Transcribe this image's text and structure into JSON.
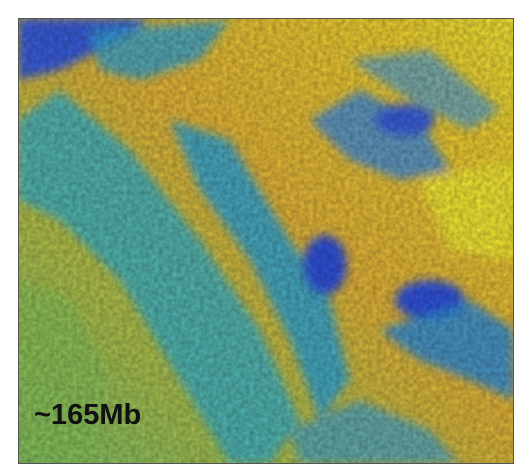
{
  "label": "~165Mb"
}
